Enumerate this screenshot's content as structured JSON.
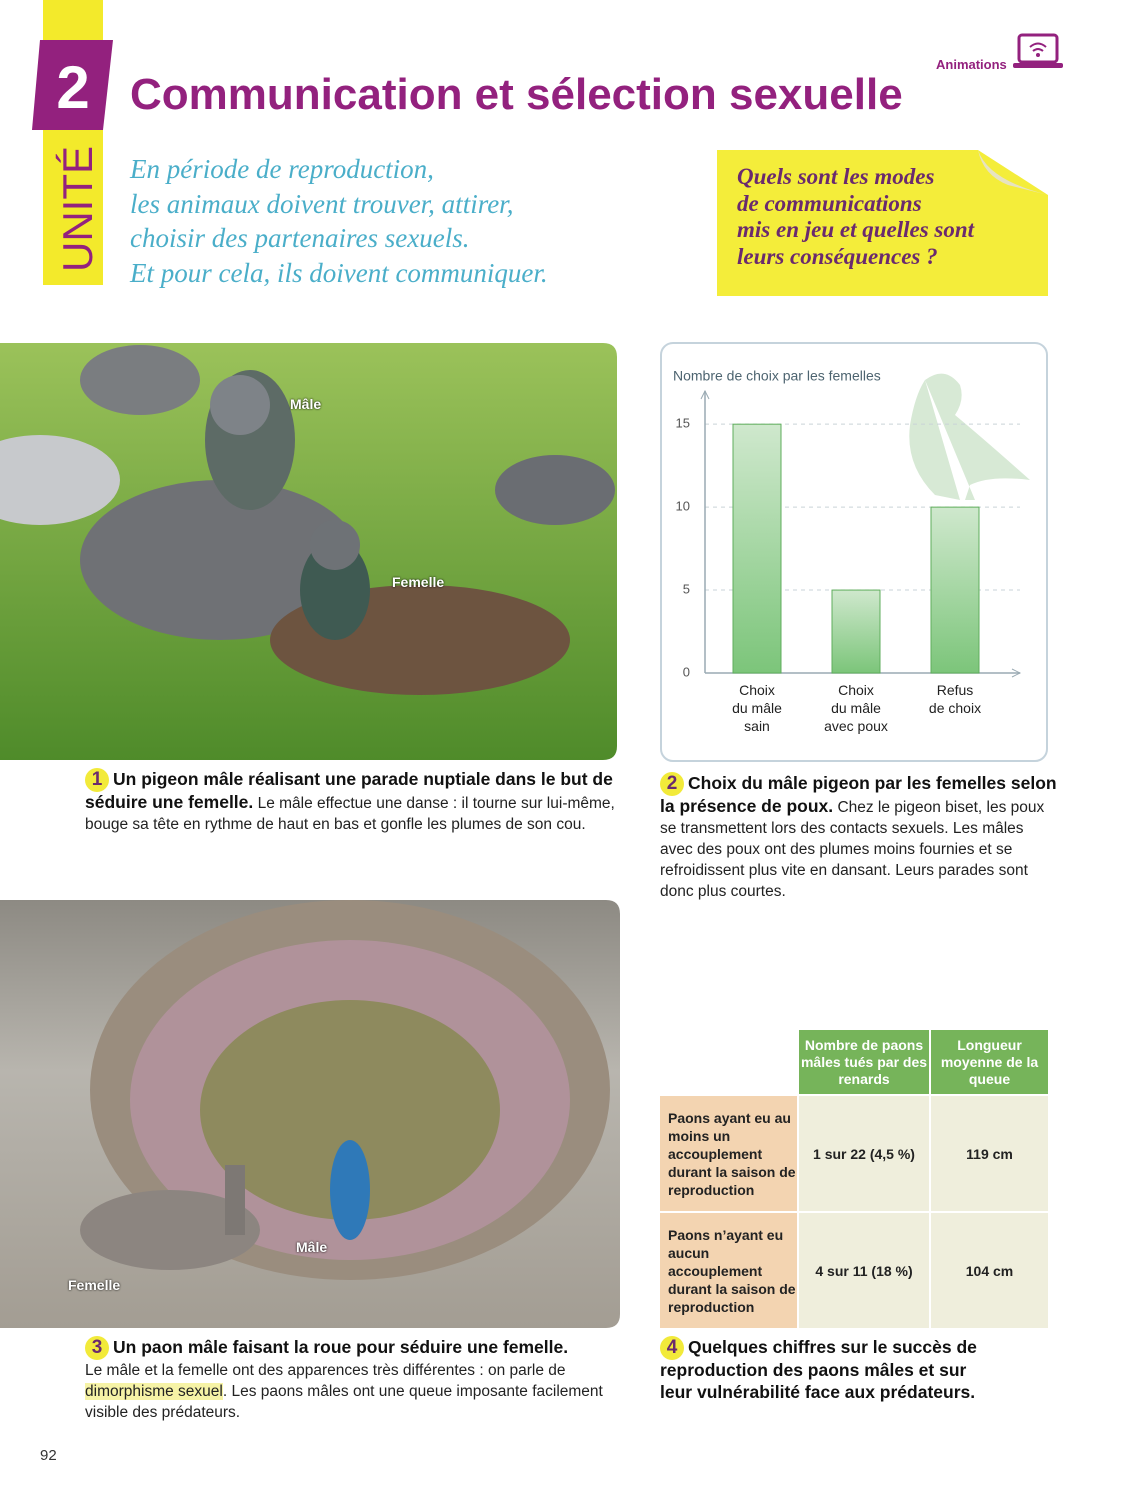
{
  "header": {
    "unit_number": "2",
    "unit_label": "UNITÉ",
    "title": "Communication et sélection sexuelle",
    "animations": "Animations",
    "intro": [
      "En période de reproduction,",
      "les animaux doivent trouver, attirer,",
      "choisir des partenaires sexuels.",
      "Et pour cela, ils doivent communiquer."
    ],
    "question": [
      "Quels sont les modes",
      "de communications",
      "mis en jeu et quelles sont",
      "leurs conséquences ?"
    ]
  },
  "doc1": {
    "labels": [
      "Mâle",
      "Femelle"
    ],
    "number": "1",
    "caption_bold": "Un pigeon mâle réalisant une parade nuptiale dans le but de séduire une femelle.",
    "caption_text": "Le mâle effectue une danse : il tourne sur lui-même, bouge sa tête en rythme de haut en bas et gonfle les plumes de son cou."
  },
  "chart_data": {
    "type": "bar",
    "title": "Nombre de choix par les femelles",
    "categories": [
      "Choix\ndu mâle\nsain",
      "Choix\ndu mâle\navec poux",
      "Refus\nde choix"
    ],
    "values": [
      15,
      5,
      10
    ],
    "color": "#7cc57a",
    "ylim": [
      0,
      17
    ],
    "yticks": [
      0,
      5,
      10,
      15
    ],
    "grid": true
  },
  "doc2": {
    "number": "2",
    "caption_bold": "Choix du mâle pigeon par les femelles selon la présence de poux.",
    "caption_text": "Chez le pigeon biset, les poux se transmettent lors des contacts sexuels. Les mâles avec des poux ont des plumes moins fournies et se refroidissent plus vite en dansant. Leurs parades sont donc plus courtes."
  },
  "doc3": {
    "labels": [
      "Mâle",
      "Femelle"
    ],
    "number": "3",
    "caption_bold": "Un paon mâle faisant la roue pour séduire une femelle.",
    "caption_text": [
      "Le mâle et la femelle ont des apparences très différentes : on parle de ",
      "dimorphisme sexuel",
      ". Les paons mâles ont une queue imposante facilement visible des prédateurs."
    ]
  },
  "table": {
    "header": [
      "Nombre de paons mâles tués par des renards",
      "Longueur moyenne de la queue"
    ],
    "rows": [
      [
        "Paons ayant eu au moins un accouplement durant la saison de reproduction",
        "1 sur 22 (4,5 %)",
        "119 cm"
      ],
      [
        "Paons n’ayant eu aucun accouplement durant la saison de reproduction",
        "4 sur 11 (18 %)",
        "104 cm"
      ]
    ]
  },
  "doc4": {
    "number": "4",
    "caption_bold": "Quelques chiffres sur le succès de reproduction des paons mâles et sur leur vulnérabilité face aux prédateurs."
  },
  "page_number": "92"
}
